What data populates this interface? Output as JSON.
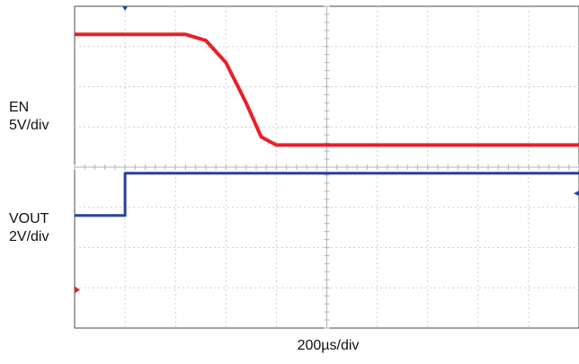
{
  "chart_data": {
    "type": "line",
    "x_axis_label": "200µs/div",
    "grid": true,
    "x_divisions": 10,
    "y_divisions": 8,
    "series": [
      {
        "name": "EN",
        "scale_label": "5V/div",
        "color": "#2a3fa0",
        "x_div": [
          0,
          1.0,
          1.0,
          10
        ],
        "y_div": [
          2.8,
          2.8,
          3.85,
          3.85
        ]
      },
      {
        "name": "VOUT",
        "scale_label": "2V/div",
        "color": "#e8202a",
        "x_div": [
          0,
          2.2,
          2.6,
          3.0,
          3.4,
          3.7,
          4.0,
          10
        ],
        "y_div": [
          7.3,
          7.3,
          7.15,
          6.6,
          5.6,
          4.75,
          4.55,
          4.55
        ]
      }
    ]
  }
}
